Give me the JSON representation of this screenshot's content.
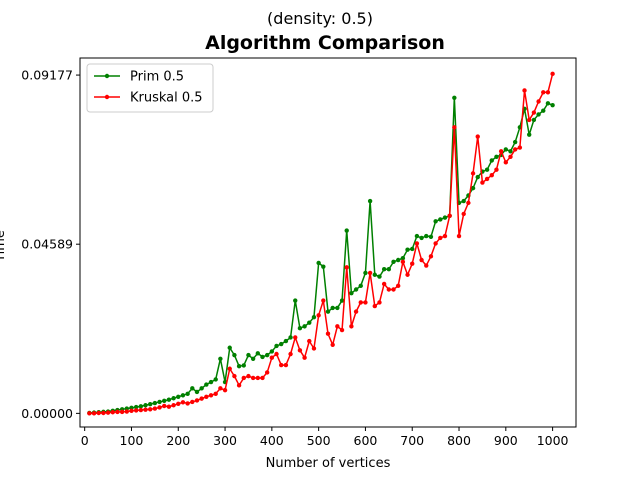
{
  "chart_data": {
    "type": "line",
    "suptitle": "(density: 0.5)",
    "title": "Algorithm Comparison",
    "xlabel": "Number of vertices",
    "ylabel": "Time",
    "xlim": [
      -10,
      1050
    ],
    "ylim": [
      -0.0037,
      0.0964
    ],
    "xticks": [
      "0",
      "100",
      "200",
      "300",
      "400",
      "500",
      "600",
      "700",
      "800",
      "900",
      "1000"
    ],
    "yticks": [
      "0.00000",
      "0.04589",
      "0.09177"
    ],
    "grid": false,
    "legend_position": "top-left",
    "x": [
      10,
      20,
      30,
      40,
      50,
      60,
      70,
      80,
      90,
      100,
      110,
      120,
      130,
      140,
      150,
      160,
      170,
      180,
      190,
      200,
      210,
      220,
      230,
      240,
      250,
      260,
      270,
      280,
      290,
      300,
      310,
      320,
      330,
      340,
      350,
      360,
      370,
      380,
      390,
      400,
      410,
      420,
      430,
      440,
      450,
      460,
      470,
      480,
      490,
      500,
      510,
      520,
      530,
      540,
      550,
      560,
      570,
      580,
      590,
      600,
      610,
      620,
      630,
      640,
      650,
      660,
      670,
      680,
      690,
      700,
      710,
      720,
      730,
      740,
      750,
      760,
      770,
      780,
      790,
      800,
      810,
      820,
      830,
      840,
      850,
      860,
      870,
      880,
      890,
      900,
      910,
      920,
      930,
      940,
      950,
      960,
      970,
      980,
      990,
      1000
    ],
    "series": [
      {
        "name": "Prim 0.5",
        "color": "#008000",
        "values": [
          0.0001,
          0.0002,
          0.0003,
          0.0004,
          0.0005,
          0.0007,
          0.0009,
          0.0011,
          0.0013,
          0.0015,
          0.0017,
          0.0019,
          0.0022,
          0.0025,
          0.0028,
          0.0031,
          0.0034,
          0.0037,
          0.0041,
          0.0045,
          0.0049,
          0.0053,
          0.0068,
          0.0058,
          0.0068,
          0.0078,
          0.0085,
          0.0092,
          0.0148,
          0.0085,
          0.0178,
          0.0158,
          0.0128,
          0.013,
          0.0158,
          0.0148,
          0.0163,
          0.0153,
          0.0158,
          0.0168,
          0.0183,
          0.0188,
          0.0196,
          0.0206,
          0.0306,
          0.0231,
          0.0236,
          0.0246,
          0.0261,
          0.0408,
          0.0398,
          0.0276,
          0.0286,
          0.0286,
          0.0306,
          0.0496,
          0.0326,
          0.0336,
          0.0346,
          0.0381,
          0.0576,
          0.0376,
          0.0371,
          0.0391,
          0.0391,
          0.0411,
          0.0416,
          0.0421,
          0.0444,
          0.0446,
          0.0481,
          0.0476,
          0.0481,
          0.0479,
          0.0521,
          0.0526,
          0.0531,
          0.0536,
          0.0856,
          0.0571,
          0.0576,
          0.0591,
          0.0611,
          0.0641,
          0.0656,
          0.0661,
          0.0686,
          0.0696,
          0.0701,
          0.0716,
          0.0711,
          0.0736,
          0.0776,
          0.0826,
          0.0756,
          0.0796,
          0.0811,
          0.0821,
          0.0841,
          0.0836
        ]
      },
      {
        "name": "Kruskal 0.5",
        "color": "#ff0000",
        "values": [
          0.0,
          0.0,
          0.0001,
          0.0001,
          0.0002,
          0.0003,
          0.0004,
          0.0004,
          0.0005,
          0.0007,
          0.0008,
          0.0009,
          0.001,
          0.0011,
          0.0013,
          0.0016,
          0.002,
          0.0018,
          0.0022,
          0.0026,
          0.003,
          0.0027,
          0.0031,
          0.0035,
          0.004,
          0.0045,
          0.0049,
          0.0053,
          0.0068,
          0.0063,
          0.0121,
          0.0101,
          0.0076,
          0.0096,
          0.0101,
          0.0096,
          0.0096,
          0.0096,
          0.0111,
          0.0151,
          0.0161,
          0.0131,
          0.0131,
          0.0161,
          0.0206,
          0.0171,
          0.0151,
          0.0196,
          0.0176,
          0.0266,
          0.0306,
          0.0216,
          0.0186,
          0.0236,
          0.0226,
          0.0396,
          0.0236,
          0.0276,
          0.0301,
          0.0301,
          0.0381,
          0.0291,
          0.0301,
          0.0351,
          0.0336,
          0.0336,
          0.0346,
          0.0411,
          0.0376,
          0.0406,
          0.0461,
          0.0416,
          0.0401,
          0.0426,
          0.0461,
          0.0476,
          0.0481,
          0.0536,
          0.0776,
          0.0481,
          0.0541,
          0.0571,
          0.0651,
          0.0751,
          0.0626,
          0.0636,
          0.0646,
          0.0661,
          0.0711,
          0.0681,
          0.0696,
          0.0716,
          0.0721,
          0.0876,
          0.0796,
          0.0816,
          0.0846,
          0.0871,
          0.0871,
          0.0921
        ]
      }
    ]
  }
}
